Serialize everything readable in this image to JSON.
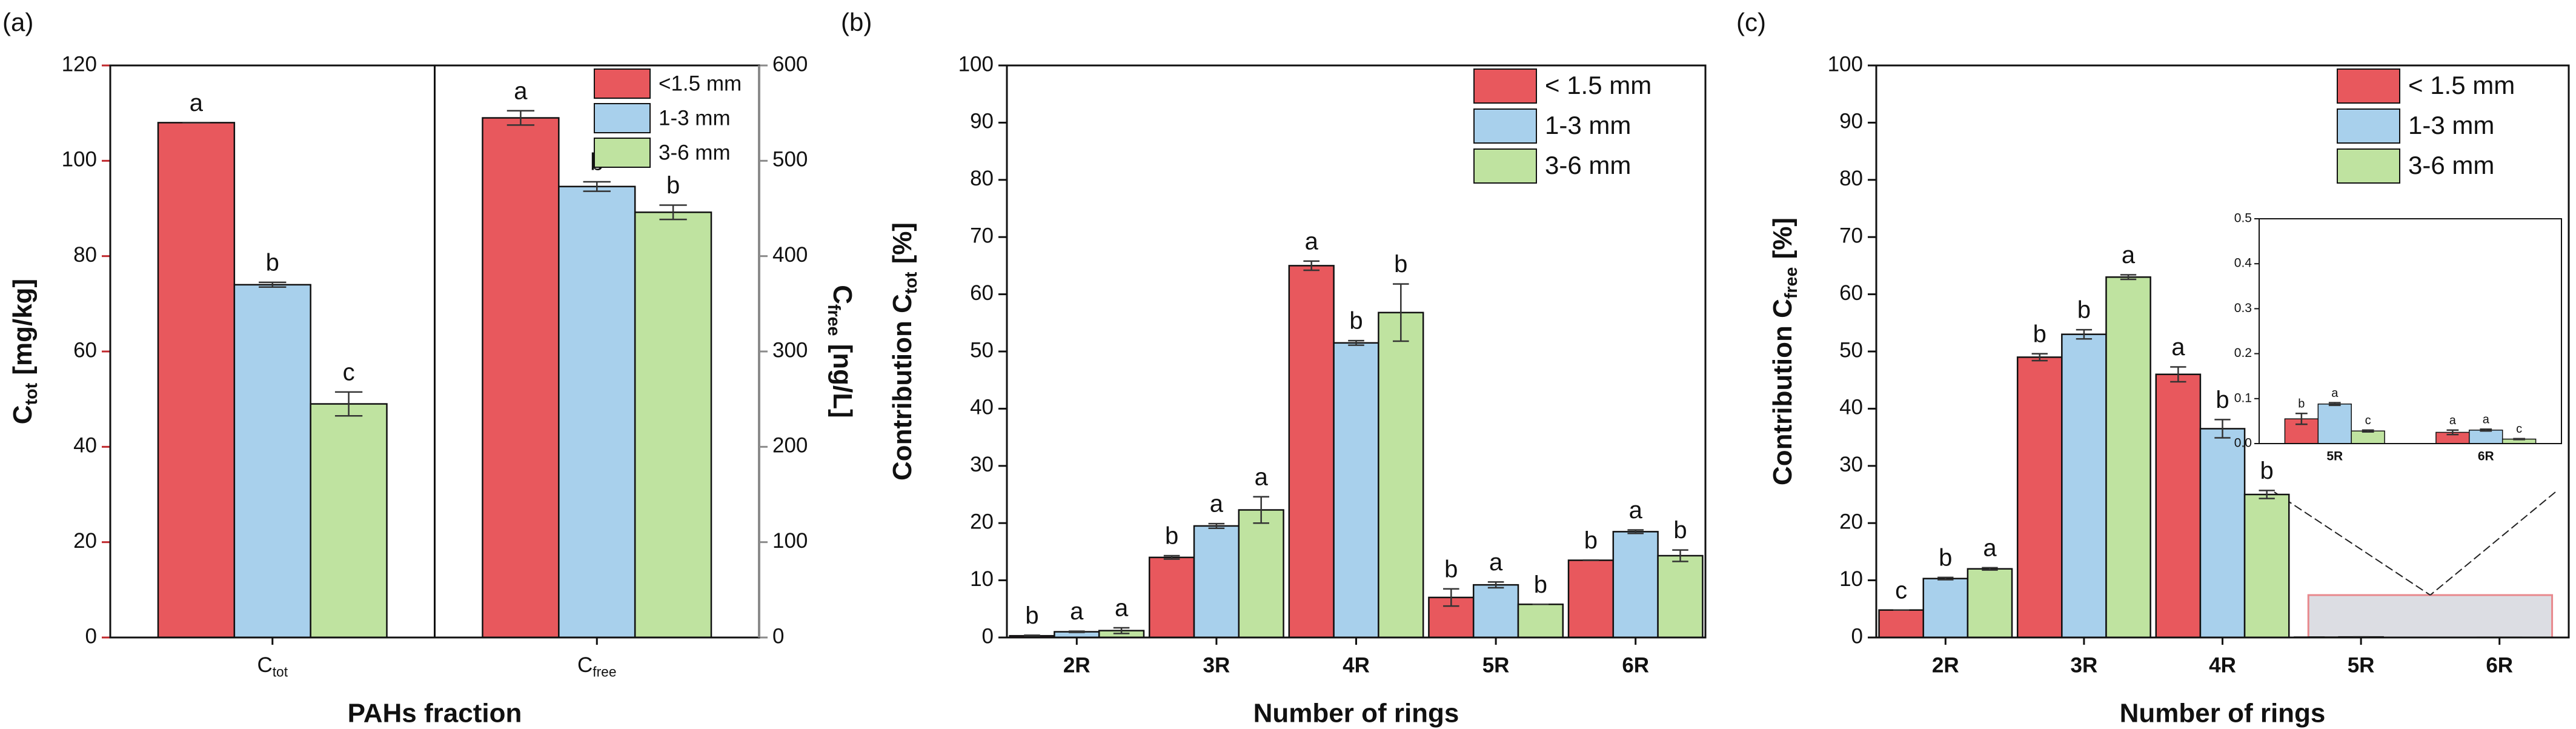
{
  "chart_data": [
    {
      "type": "bar",
      "panel_label": "(a)",
      "categories": [
        {
          "main": "C",
          "sub": "tot"
        },
        {
          "main": "C",
          "sub": "free"
        }
      ],
      "category_axes": [
        "y",
        "y2"
      ],
      "xlabel": "PAHs fraction",
      "ylabel": {
        "main": "C",
        "sub": "tot",
        "unit": "[mg/kg]"
      },
      "y2label": {
        "main": "C",
        "sub": "free",
        "unit": "[ng/L]"
      },
      "ycolor": "#c0282d",
      "y2color": "#8a8a8a",
      "ylim": [
        0,
        120
      ],
      "yticks": [
        0,
        20,
        40,
        60,
        80,
        100,
        120
      ],
      "y2lim": [
        0,
        600
      ],
      "y2ticks": [
        0,
        100,
        200,
        300,
        400,
        500,
        600
      ],
      "divider": true,
      "legend": "upper right",
      "series": [
        {
          "name": "<1.5 mm",
          "color": "#e8585d",
          "values": [
            108,
            545
          ],
          "errors": [
            0,
            7.5
          ],
          "letters": [
            "a",
            "a"
          ]
        },
        {
          "name": "1-3 mm",
          "color": "#a8d0ec",
          "values": [
            74,
            473
          ],
          "errors": [
            0.5,
            5
          ],
          "letters": [
            "b",
            "b"
          ]
        },
        {
          "name": "3-6 mm",
          "color": "#bfe3a0",
          "values": [
            49,
            446
          ],
          "errors": [
            2.5,
            7.5
          ],
          "letters": [
            "c",
            "b"
          ]
        }
      ]
    },
    {
      "type": "bar",
      "panel_label": "(b)",
      "categories": [
        "2R",
        "3R",
        "4R",
        "5R",
        "6R"
      ],
      "xlabel": "Number of rings",
      "ylabel": {
        "main": "Contribution C",
        "sub": "tot",
        "unit": "[%]"
      },
      "ylim": [
        0,
        100
      ],
      "yticks": [
        0,
        10,
        20,
        30,
        40,
        50,
        60,
        70,
        80,
        90,
        100
      ],
      "legend": "upper right",
      "series": [
        {
          "name": "< 1.5 mm",
          "color": "#e8585d",
          "values": [
            0.3,
            14,
            65,
            7,
            13.5
          ],
          "errors": [
            0.1,
            0.3,
            0.8,
            1.5,
            0
          ],
          "letters": [
            "b",
            "b",
            "a",
            "b",
            "b"
          ]
        },
        {
          "name": "1-3 mm",
          "color": "#a8d0ec",
          "values": [
            1,
            19.5,
            51.5,
            9.2,
            18.5
          ],
          "errors": [
            0.1,
            0.4,
            0.4,
            0.5,
            0.3
          ],
          "letters": [
            "a",
            "a",
            "b",
            "a",
            "a"
          ]
        },
        {
          "name": "3-6 mm",
          "color": "#bfe3a0",
          "values": [
            1.2,
            22.3,
            56.8,
            5.8,
            14.3
          ],
          "errors": [
            0.5,
            2.3,
            5,
            0,
            1
          ],
          "letters": [
            "a",
            "a",
            "b",
            "b",
            "b"
          ]
        }
      ]
    },
    {
      "type": "bar",
      "panel_label": "(c)",
      "categories": [
        "2R",
        "3R",
        "4R",
        "5R",
        "6R"
      ],
      "xlabel": "Number of rings",
      "ylabel": {
        "main": "Contribution C",
        "sub": "free",
        "unit": "[%]"
      },
      "ylim": [
        0,
        100
      ],
      "yticks": [
        0,
        10,
        20,
        30,
        40,
        50,
        60,
        70,
        80,
        90,
        100
      ],
      "legend": "upper right",
      "inset": {
        "ylim": [
          0,
          0.5
        ],
        "yticks": [
          {
            "value": 0,
            "label": "0.0"
          },
          {
            "value": 0.1,
            "label": "0.1"
          },
          {
            "value": 0.2,
            "label": "0.2"
          },
          {
            "value": 0.3,
            "label": "0.3"
          },
          {
            "value": 0.4,
            "label": "0.4"
          },
          {
            "value": 0.5,
            "label": "0.5"
          }
        ]
      },
      "series": [
        {
          "name": "< 1.5 mm",
          "color": "#e8585d",
          "values": [
            4.8,
            49,
            46,
            0.055,
            0.025
          ],
          "errors": [
            0,
            0.6,
            1.3,
            0.012,
            0.005
          ],
          "letters": [
            "c",
            "b",
            "a",
            "b",
            "a"
          ]
        },
        {
          "name": "1-3 mm",
          "color": "#a8d0ec",
          "values": [
            10.3,
            53,
            36.5,
            0.088,
            0.03
          ],
          "errors": [
            0.2,
            0.8,
            1.6,
            0.003,
            0.002
          ],
          "letters": [
            "b",
            "b",
            "b",
            "a",
            "a"
          ]
        },
        {
          "name": "3-6 mm",
          "color": "#bfe3a0",
          "values": [
            12,
            63,
            25,
            0.028,
            0.01
          ],
          "errors": [
            0.2,
            0.4,
            0.7,
            0.002,
            0.001
          ],
          "letters": [
            "a",
            "a",
            "b",
            "c",
            "c"
          ]
        }
      ]
    }
  ]
}
